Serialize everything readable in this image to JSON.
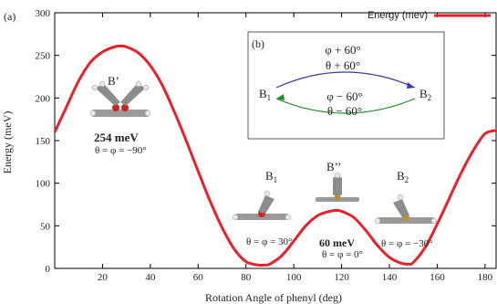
{
  "panel_label": "(a)",
  "inset_label": "(b)",
  "inset": {
    "left_state": "B",
    "left_sub": "1",
    "right_state": "B",
    "right_sub": "2",
    "upper_line1": "φ + 60°",
    "upper_line2": "θ + 60°",
    "lower_line1": "φ − 60°",
    "lower_line2": "θ − 60°",
    "upper_color": "#3a3aa8",
    "lower_color": "#1f8a2a"
  },
  "annotations": {
    "b_prime": "B’",
    "b_prime_energy": "254 meV",
    "b_prime_angle": "θ = φ = −90°",
    "b1": "B",
    "b1_sub": "1",
    "b1_angle": "θ = φ = 30°",
    "b_double_prime": "B’’",
    "b_double_prime_energy": "60 meV",
    "b_double_prime_angle": "θ = φ = 0°",
    "b2": "B",
    "b2_sub": "2",
    "b2_angle": "θ = φ = −30°"
  },
  "molecule_icons": [
    "molecule-b-prime-icon",
    "molecule-b1-icon",
    "molecule-b-double-prime-icon",
    "molecule-b2-icon"
  ],
  "chart_data": {
    "type": "line",
    "xlabel": "Rotation Angle of phenyl (deg)",
    "ylabel": "Energy (meV)",
    "xlim": [
      0,
      185
    ],
    "ylim": [
      0,
      300
    ],
    "xticks": [
      20,
      40,
      60,
      80,
      100,
      120,
      140,
      160,
      180
    ],
    "yticks": [
      0,
      50,
      100,
      150,
      200,
      250,
      300
    ],
    "grid": false,
    "legend_position": "top-right",
    "series": [
      {
        "name": "Energy (mev)",
        "color": "#e8202a",
        "x": [
          0,
          5,
          10,
          15,
          20,
          25,
          28,
          30,
          35,
          40,
          45,
          50,
          55,
          60,
          65,
          70,
          75,
          80,
          85,
          88,
          90,
          95,
          100,
          105,
          110,
          115,
          118,
          120,
          125,
          130,
          135,
          140,
          145,
          148,
          150,
          155,
          160,
          165,
          170,
          175,
          180,
          185
        ],
        "y": [
          160,
          190,
          220,
          242,
          254,
          260,
          261,
          260,
          253,
          238,
          215,
          184,
          150,
          114,
          79,
          48,
          23,
          8,
          4,
          4,
          5,
          15,
          32,
          50,
          62,
          67,
          68,
          67,
          60,
          45,
          27,
          13,
          6,
          5,
          7,
          25,
          52,
          82,
          112,
          138,
          158,
          162
        ]
      }
    ]
  }
}
